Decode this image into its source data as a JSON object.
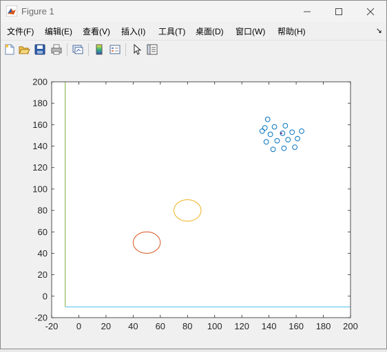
{
  "window": {
    "title": "Figure 1"
  },
  "menu": [
    {
      "label": "文件(F)"
    },
    {
      "label": "编辑(E)"
    },
    {
      "label": "查看(V)"
    },
    {
      "label": "插入(I)"
    },
    {
      "label": "工具(T)"
    },
    {
      "label": "桌面(D)"
    },
    {
      "label": "窗口(W)"
    },
    {
      "label": "帮助(H)"
    }
  ],
  "menu_overflow_icon": "dock-arrow-icon",
  "toolbar": {
    "icons": [
      "new-figure-icon",
      "open-file-icon",
      "save-icon",
      "print-icon",
      "link-plot-icon",
      "insert-colorbar-icon",
      "insert-legend-icon",
      "edit-plot-arrow-icon",
      "property-inspector-icon"
    ]
  },
  "colors": {
    "axes_bg": "#ffffff",
    "circles": "#0072BD",
    "circle_red": "#D95319",
    "circle_yellow": "#EDB120",
    "line_green": "#77AC30",
    "line_cyan": "#4DBEEE",
    "center_point": "#7E2F8E"
  },
  "chart_data": {
    "type": "scatter",
    "title": "",
    "xlabel": "",
    "ylabel": "",
    "xlim": [
      -20,
      200
    ],
    "ylim": [
      -20,
      200
    ],
    "xticks": [
      -20,
      0,
      20,
      40,
      60,
      80,
      100,
      120,
      140,
      160,
      180,
      200
    ],
    "yticks": [
      -20,
      0,
      20,
      40,
      60,
      80,
      100,
      120,
      140,
      160,
      180,
      200
    ],
    "tick_labels_x": [
      "-20",
      "0",
      "20",
      "40",
      "60",
      "80",
      "100",
      "120",
      "140",
      "160",
      "180",
      "200"
    ],
    "tick_labels_y": [
      "-20",
      "0",
      "20",
      "40",
      "60",
      "80",
      "100",
      "120",
      "140",
      "160",
      "180",
      "200"
    ],
    "grid": false,
    "series": [
      {
        "marker": "o",
        "x": [
          139,
          137,
          144,
          152,
          135,
          141,
          150,
          157,
          164,
          138,
          146,
          154,
          161,
          143,
          151,
          159
        ],
        "y": [
          165,
          157,
          158,
          159,
          154,
          151,
          152,
          153,
          154,
          144,
          145,
          146,
          147,
          137,
          138,
          139
        ]
      },
      {
        "marker": ".",
        "x": [
          149
        ],
        "y": [
          152
        ]
      }
    ],
    "circles": [
      {
        "cx": 50,
        "cy": 50,
        "r": 10
      },
      {
        "cx": 80,
        "cy": 80,
        "r": 10
      }
    ],
    "lines": [
      {
        "x": [
          -10,
          -10
        ],
        "y": [
          -10,
          200
        ]
      },
      {
        "x": [
          -10,
          200
        ],
        "y": [
          -10,
          -10
        ]
      }
    ]
  }
}
